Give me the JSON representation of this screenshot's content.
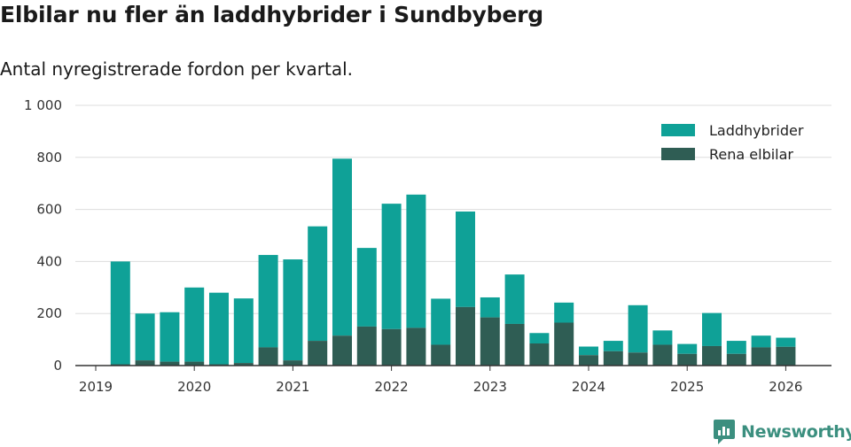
{
  "header": {
    "title": "Elbilar nu fler än laddhybrider i Sundbyberg",
    "subtitle": "Antal nyregistrerade fordon per kvartal."
  },
  "colors": {
    "laddhybrider": "#0fa197",
    "rena_elbilar": "#2f5d54",
    "grid": "#dddddd",
    "axis": "#333333",
    "brand": "#3b8f7f"
  },
  "brand": {
    "name": "Newsworthy",
    "icon": "newsworthy-logo-icon"
  },
  "chart_data": {
    "type": "bar",
    "stacked": true,
    "title": "Elbilar nu fler än laddhybrider i Sundbyberg",
    "subtitle": "Antal nyregistrerade fordon per kvartal.",
    "xlabel": "",
    "ylabel": "",
    "ylim": [
      0,
      1000
    ],
    "yticks": [
      0,
      200,
      400,
      600,
      800,
      1000
    ],
    "ytick_labels": [
      "0",
      "200",
      "400",
      "600",
      "800",
      "1 000"
    ],
    "xtick_labels": [
      "2019",
      "2020",
      "2021",
      "2022",
      "2023",
      "2024",
      "2025",
      "2026"
    ],
    "grid": true,
    "legend_position": "top-right",
    "categories": [
      "2019 Q2",
      "2019 Q3",
      "2019 Q4",
      "2020 Q1",
      "2020 Q2",
      "2020 Q3",
      "2020 Q4",
      "2021 Q1",
      "2021 Q2",
      "2021 Q3",
      "2021 Q4",
      "2022 Q1",
      "2022 Q2",
      "2022 Q3",
      "2022 Q4",
      "2023 Q1",
      "2023 Q2",
      "2023 Q3",
      "2023 Q4",
      "2024 Q1",
      "2024 Q2",
      "2024 Q3",
      "2024 Q4",
      "2025 Q1",
      "2025 Q2",
      "2025 Q3",
      "2025 Q4",
      "2026 Q1"
    ],
    "series": [
      {
        "name": "Rena elbilar",
        "values": [
          5,
          20,
          15,
          15,
          5,
          10,
          70,
          20,
          95,
          115,
          150,
          140,
          145,
          80,
          225,
          185,
          160,
          85,
          165,
          40,
          55,
          50,
          80,
          45,
          75,
          45,
          70,
          72
        ]
      },
      {
        "name": "Laddhybrider",
        "values": [
          395,
          180,
          190,
          285,
          275,
          248,
          355,
          388,
          440,
          680,
          302,
          482,
          512,
          177,
          367,
          77,
          190,
          40,
          77,
          33,
          40,
          182,
          55,
          38,
          127,
          50,
          45,
          35
        ]
      }
    ]
  }
}
